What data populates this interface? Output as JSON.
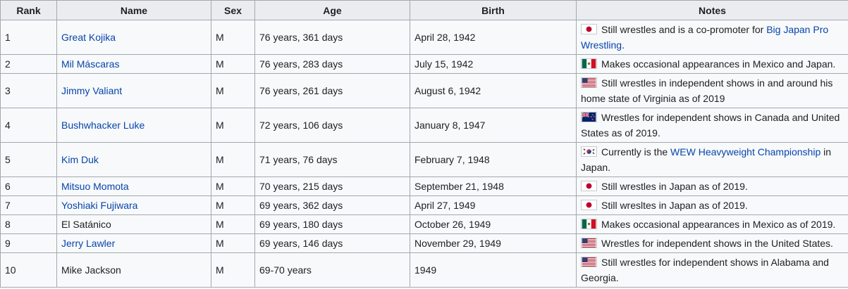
{
  "columns": [
    "Rank",
    "Name",
    "Sex",
    "Age",
    "Birth",
    "Notes"
  ],
  "rows": [
    {
      "rank": "1",
      "name": "Great Kojika",
      "sex": "M",
      "age": "76 years, 361 days",
      "birth": "April 28, 1942",
      "flag": "japan-flag-icon",
      "notes": [
        "Still wrestles and is a co-promoter for ",
        {
          "link": "Big Japan Pro Wrestling"
        },
        "."
      ]
    },
    {
      "rank": "2",
      "name": "Mil Máscaras",
      "sex": "M",
      "age": "76 years, 283 days",
      "birth": "July 15, 1942",
      "flag": "mexico-flag-icon",
      "notes": [
        "Makes occasional appearances in Mexico and Japan."
      ]
    },
    {
      "rank": "3",
      "name": "Jimmy Valiant",
      "sex": "M",
      "age": "76 years, 261 days",
      "birth": "August 6, 1942",
      "flag": "usa-flag-icon",
      "notes": [
        "Still wrestles in independent shows in and around his home state of Virginia as of 2019"
      ]
    },
    {
      "rank": "4",
      "name": "Bushwhacker Luke",
      "sex": "M",
      "age": "72 years, 106 days",
      "birth": "January 8, 1947",
      "flag": "new-zealand-flag-icon",
      "notes": [
        "Wrestles for independent shows in Canada and United States as of 2019."
      ]
    },
    {
      "rank": "5",
      "name": "Kim Duk",
      "sex": "M",
      "age": "71 years, 76 days",
      "birth": "February 7, 1948",
      "flag": "south-korea-flag-icon",
      "notes": [
        "Currently is the ",
        {
          "link": "WEW Heavyweight Championship"
        },
        " in Japan."
      ]
    },
    {
      "rank": "6",
      "name": "Mitsuo Momota",
      "sex": "M",
      "age": "70 years, 215 days",
      "birth": "September 21, 1948",
      "flag": "japan-flag-icon",
      "notes": [
        "Still wrestles in Japan as of 2019."
      ]
    },
    {
      "rank": "7",
      "name": "Yoshiaki Fujiwara",
      "sex": "M",
      "age": "69 years, 362 days",
      "birth": "April 27, 1949",
      "flag": "japan-flag-icon",
      "notes": [
        "Still wresltes in Japan as of 2019."
      ]
    },
    {
      "rank": "8",
      "name": "El Satánico",
      "name_is_link": false,
      "sex": "M",
      "age": "69 years, 180 days",
      "birth": "October 26, 1949",
      "flag": "mexico-flag-icon",
      "notes": [
        "Makes occasional appearances in Mexico as of 2019."
      ]
    },
    {
      "rank": "9",
      "name": "Jerry Lawler",
      "sex": "M",
      "age": "69 years, 146 days",
      "birth": "November 29, 1949",
      "flag": "usa-flag-icon",
      "notes": [
        "Wrestles for independent shows in the United States."
      ]
    },
    {
      "rank": "10",
      "name": "Mike Jackson",
      "name_is_link": false,
      "sex": "M",
      "age": "69-70 years",
      "birth": "1949",
      "flag": "usa-flag-icon",
      "notes": [
        "Still wrestles for independent shows in Alabama and Georgia."
      ]
    }
  ],
  "colors": {
    "link": "#0645ad",
    "header_bg": "#eaecf0",
    "cell_bg": "#f8f9fa",
    "border": "#a2a9b1"
  }
}
